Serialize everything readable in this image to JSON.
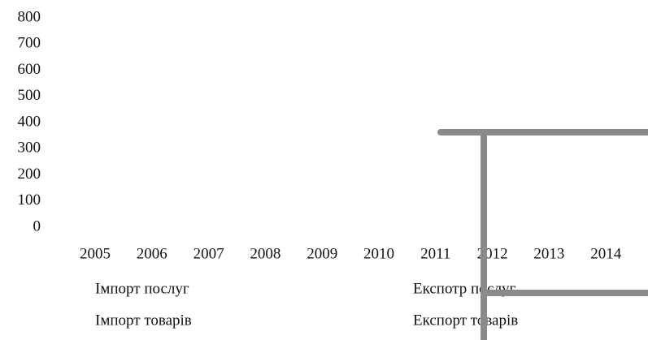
{
  "chart_data": {
    "type": "line",
    "categories": [
      "2005",
      "2006",
      "2007",
      "2008",
      "2009",
      "2010",
      "2011",
      "2012",
      "2013",
      "2014"
    ],
    "series": [
      {
        "name": "Імпорт послуг",
        "values": [
          null,
          null,
          null,
          null,
          null,
          null,
          null,
          null,
          null,
          null
        ]
      },
      {
        "name": "Імпорт товарів",
        "values": [
          null,
          null,
          null,
          null,
          null,
          null,
          null,
          null,
          null,
          null
        ]
      },
      {
        "name": "Експотр послуг",
        "values": [
          null,
          null,
          null,
          null,
          null,
          null,
          null,
          null,
          null,
          null
        ]
      },
      {
        "name": "Експорт товарів",
        "values": [
          null,
          null,
          null,
          null,
          null,
          null,
          null,
          null,
          null,
          null
        ]
      }
    ],
    "ylim": [
      0,
      800
    ],
    "yticks": [
      0,
      100,
      200,
      300,
      400,
      500,
      600,
      700,
      800
    ]
  }
}
